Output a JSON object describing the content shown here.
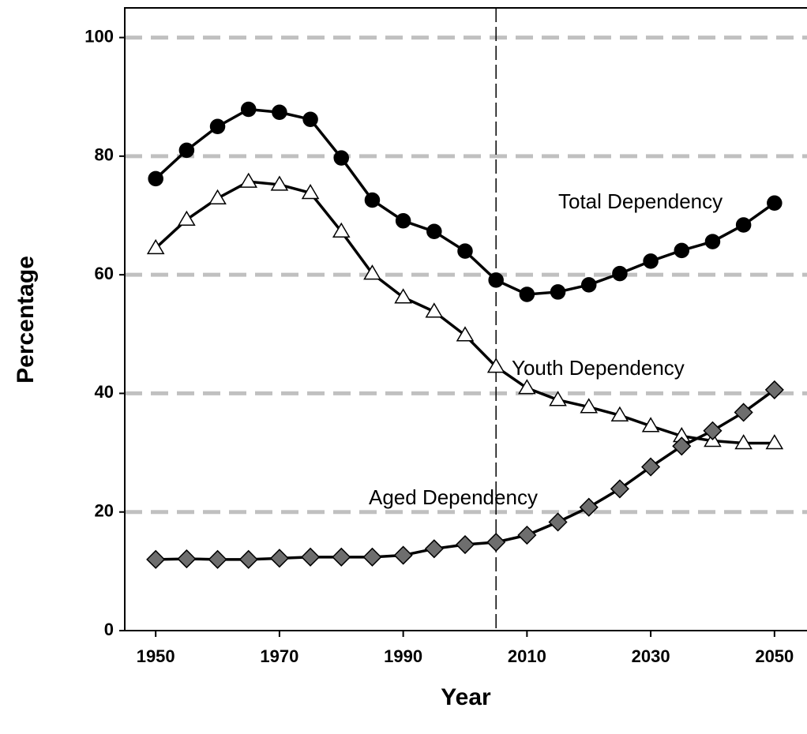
{
  "chart_data": {
    "type": "line",
    "x_label": "Year",
    "y_label": "Percentage",
    "x": [
      1950,
      1955,
      1960,
      1965,
      1970,
      1975,
      1980,
      1985,
      1990,
      1995,
      2000,
      2005,
      2010,
      2015,
      2020,
      2025,
      2030,
      2035,
      2040,
      2045,
      2050
    ],
    "series": [
      {
        "name": "Total Dependency",
        "color": "#000000",
        "marker": "circle",
        "values": [
          76.2,
          81.0,
          85.0,
          87.9,
          87.4,
          86.2,
          79.7,
          72.6,
          69.1,
          67.3,
          64.0,
          59.1,
          56.7,
          57.1,
          58.3,
          60.2,
          62.3,
          64.1,
          65.6,
          68.4,
          72.1
        ]
      },
      {
        "name": "Youth Dependency",
        "color": "#ffffff",
        "marker": "triangle",
        "values": [
          64.5,
          69.3,
          72.9,
          75.7,
          75.2,
          73.8,
          67.3,
          60.2,
          56.2,
          53.8,
          49.8,
          44.5,
          40.9,
          38.9,
          37.7,
          36.3,
          34.5,
          32.8,
          32.0,
          31.6,
          31.6
        ]
      },
      {
        "name": "Aged Dependency",
        "color": "#6e6e6e",
        "marker": "diamond",
        "values": [
          12.0,
          12.1,
          12.0,
          12.0,
          12.2,
          12.4,
          12.4,
          12.4,
          12.7,
          13.8,
          14.5,
          14.9,
          16.1,
          18.3,
          20.8,
          23.9,
          27.6,
          31.1,
          33.7,
          36.8,
          40.6
        ]
      }
    ],
    "xlim": [
      1945,
      2055
    ],
    "ylim": [
      0,
      105
    ],
    "xticks": [
      1950,
      1970,
      1990,
      2010,
      2030,
      2050
    ],
    "yticks": [
      0,
      20,
      40,
      60,
      80,
      100
    ],
    "grid": true,
    "reference_line_x": 2005,
    "legend": "inline"
  }
}
